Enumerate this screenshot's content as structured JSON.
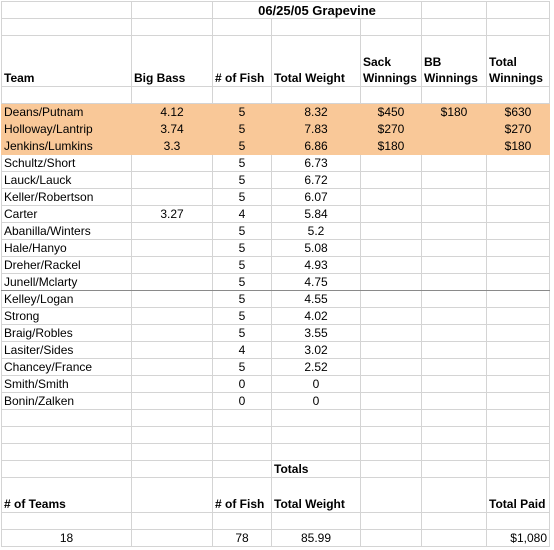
{
  "title": "06/25/05 Grapevine",
  "headers": {
    "team": "Team",
    "big_bass": "Big Bass",
    "num_fish": "# of Fish",
    "total_weight": "Total Weight",
    "sack_winnings": "Sack Winnings",
    "bb_winnings": "BB Winnings",
    "total_winnings": "Total Winnings"
  },
  "rows": [
    {
      "team": "Deans/Putnam",
      "big_bass": "4.12",
      "fish": "5",
      "weight": "8.32",
      "sack": "$450",
      "bb": "$180",
      "total": "$630"
    },
    {
      "team": "Holloway/Lantrip",
      "big_bass": "3.74",
      "fish": "5",
      "weight": "7.83",
      "sack": "$270",
      "bb": "",
      "total": "$270"
    },
    {
      "team": "Jenkins/Lumkins",
      "big_bass": "3.3",
      "fish": "5",
      "weight": "6.86",
      "sack": "$180",
      "bb": "",
      "total": "$180"
    },
    {
      "team": "Schultz/Short",
      "big_bass": "",
      "fish": "5",
      "weight": "6.73",
      "sack": "",
      "bb": "",
      "total": ""
    },
    {
      "team": "Lauck/Lauck",
      "big_bass": "",
      "fish": "5",
      "weight": "6.72",
      "sack": "",
      "bb": "",
      "total": ""
    },
    {
      "team": "Keller/Robertson",
      "big_bass": "",
      "fish": "5",
      "weight": "6.07",
      "sack": "",
      "bb": "",
      "total": ""
    },
    {
      "team": "Carter",
      "big_bass": "3.27",
      "fish": "4",
      "weight": "5.84",
      "sack": "",
      "bb": "",
      "total": ""
    },
    {
      "team": "Abanilla/Winters",
      "big_bass": "",
      "fish": "5",
      "weight": "5.2",
      "sack": "",
      "bb": "",
      "total": ""
    },
    {
      "team": "Hale/Hanyo",
      "big_bass": "",
      "fish": "5",
      "weight": "5.08",
      "sack": "",
      "bb": "",
      "total": ""
    },
    {
      "team": "Dreher/Rackel",
      "big_bass": "",
      "fish": "5",
      "weight": "4.93",
      "sack": "",
      "bb": "",
      "total": ""
    },
    {
      "team": "Junell/Mclarty",
      "big_bass": "",
      "fish": "5",
      "weight": "4.75",
      "sack": "",
      "bb": "",
      "total": ""
    },
    {
      "team": "Kelley/Logan",
      "big_bass": "",
      "fish": "5",
      "weight": "4.55",
      "sack": "",
      "bb": "",
      "total": ""
    },
    {
      "team": "Strong",
      "big_bass": "",
      "fish": "5",
      "weight": "4.02",
      "sack": "",
      "bb": "",
      "total": ""
    },
    {
      "team": "Braig/Robles",
      "big_bass": "",
      "fish": "5",
      "weight": "3.55",
      "sack": "",
      "bb": "",
      "total": ""
    },
    {
      "team": "Lasiter/Sides",
      "big_bass": "",
      "fish": "4",
      "weight": "3.02",
      "sack": "",
      "bb": "",
      "total": ""
    },
    {
      "team": "Chancey/France",
      "big_bass": "",
      "fish": "5",
      "weight": "2.52",
      "sack": "",
      "bb": "",
      "total": ""
    },
    {
      "team": "Smith/Smith",
      "big_bass": "",
      "fish": "0",
      "weight": "0",
      "sack": "",
      "bb": "",
      "total": ""
    },
    {
      "team": "Bonin/Zalken",
      "big_bass": "",
      "fish": "0",
      "weight": "0",
      "sack": "",
      "bb": "",
      "total": ""
    }
  ],
  "totals": {
    "section_label": "Totals",
    "num_teams_label": "# of Teams",
    "num_fish_label": "# of Fish",
    "total_weight_label": "Total Weight",
    "total_paid_label": "Total Paid",
    "num_teams": "18",
    "num_fish": "78",
    "total_weight": "85.99",
    "total_paid": "$1,080"
  },
  "colors": {
    "highlight": "#f9c898",
    "gridline": "#d4d4d4"
  }
}
